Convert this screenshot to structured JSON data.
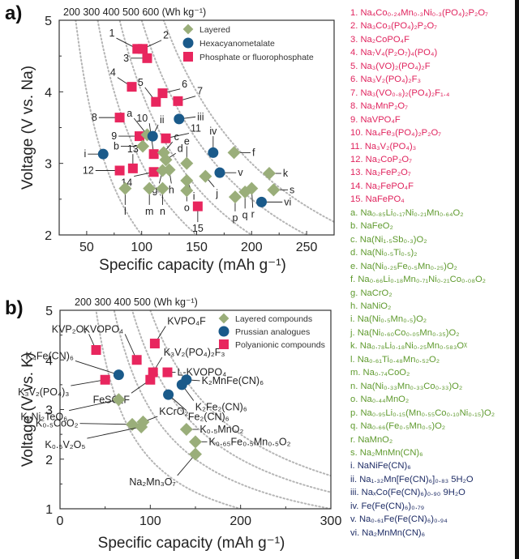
{
  "colors": {
    "layered": "#9aae7a",
    "hexacyano": "#1a5a8a",
    "phosphate": "#e8265e",
    "grid_dotted": "#b5b5b5",
    "list_pink": "#e0245e",
    "list_green": "#5f9a2e",
    "list_navy": "#1f2d66"
  },
  "chart_data": [
    {
      "type": "scatter",
      "panel": "a)",
      "xlabel": "Specific capacity  (mAh g⁻¹)",
      "ylabel": "Voltage  (V vs. Na)",
      "xlim": [
        25,
        275
      ],
      "ylim": [
        2,
        5
      ],
      "xticks": [
        50,
        100,
        150,
        200,
        250
      ],
      "yticks": [
        2,
        3,
        4,
        5
      ],
      "energy_top_label": "200 300 400 500 600 (Wh kg⁻¹)",
      "energy_curves_wh_per_kg": [
        200,
        300,
        400,
        500,
        600
      ],
      "legend": [
        {
          "label": "Layered",
          "marker": "diamond",
          "key": "layered"
        },
        {
          "label": "Hexacyanometalate",
          "marker": "circle",
          "key": "hexacyano"
        },
        {
          "label": "Phosphate or fluorophosphate",
          "marker": "square",
          "key": "phosphate"
        }
      ],
      "legend_position": "top-right",
      "series": [
        {
          "name": "Phosphate or fluorophosphate",
          "key": "phosphate",
          "points": [
            {
              "label": "1",
              "x": 96,
              "y": 4.6,
              "lx": 77,
              "ly": 4.75
            },
            {
              "label": "2",
              "x": 101,
              "y": 4.6,
              "lx": 118,
              "ly": 4.72
            },
            {
              "label": "3",
              "x": 105,
              "y": 4.47,
              "lx": 90,
              "ly": 4.47
            },
            {
              "label": "4",
              "x": 91,
              "y": 4.07,
              "lx": 78,
              "ly": 4.2
            },
            {
              "label": "5",
              "x": 113,
              "y": 3.86,
              "lx": 103,
              "ly": 4.06
            },
            {
              "label": "6",
              "x": 119,
              "y": 3.98,
              "lx": 135,
              "ly": 4.04
            },
            {
              "label": "7",
              "x": 133,
              "y": 3.87,
              "lx": 149,
              "ly": 3.94
            },
            {
              "label": "8",
              "x": 80,
              "y": 3.64,
              "lx": 61,
              "ly": 3.64
            },
            {
              "label": "9",
              "x": 98,
              "y": 3.38,
              "lx": 79,
              "ly": 3.38
            },
            {
              "label": "10",
              "x": 111,
              "y": 3.13,
              "lx": 107,
              "ly": 3.56
            },
            {
              "label": "11",
              "x": 122,
              "y": 3.35,
              "lx": 143,
              "ly": 3.42
            },
            {
              "label": "12",
              "x": 80,
              "y": 2.9,
              "lx": 58,
              "ly": 2.9
            },
            {
              "label": "13",
              "x": 92,
              "y": 2.93,
              "lx": 92,
              "ly": 3.13
            },
            {
              "label": "14",
              "x": 111,
              "y": 2.88,
              "lx": 93,
              "ly": 2.82
            },
            {
              "label": "15",
              "x": 151,
              "y": 2.4,
              "lx": 151,
              "ly": 2.18
            }
          ]
        },
        {
          "name": "Layered",
          "key": "layered",
          "points": [
            {
              "label": "a",
              "x": 105,
              "y": 3.4,
              "lx": 93,
              "ly": 3.63
            },
            {
              "label": "b",
              "x": 101,
              "y": 3.24,
              "lx": 81,
              "ly": 3.24
            },
            {
              "label": "c",
              "x": 120,
              "y": 3.15,
              "lx": 128,
              "ly": 3.3
            },
            {
              "label": "d",
              "x": 122,
              "y": 3.05,
              "lx": 131,
              "ly": 3.14
            },
            {
              "label": "e",
              "x": 141,
              "y": 3.0,
              "lx": 141,
              "ly": 3.24
            },
            {
              "label": "f",
              "x": 184,
              "y": 3.15,
              "lx": 199,
              "ly": 3.15
            },
            {
              "label": "g",
              "x": 119,
              "y": 2.9,
              "lx": 116,
              "ly": 2.72
            },
            {
              "label": "h",
              "x": 125,
              "y": 2.91,
              "lx": 127,
              "ly": 2.72
            },
            {
              "label": "i",
              "x": 141,
              "y": 2.76,
              "lx": 145,
              "ly": 2.63
            },
            {
              "label": "j",
              "x": 158,
              "y": 2.82,
              "lx": 166,
              "ly": 2.67
            },
            {
              "label": "k",
              "x": 216,
              "y": 2.86,
              "lx": 227,
              "ly": 2.86
            },
            {
              "label": "l",
              "x": 85,
              "y": 2.65,
              "lx": 85,
              "ly": 2.42
            },
            {
              "label": "m",
              "x": 107,
              "y": 2.65,
              "lx": 107,
              "ly": 2.42
            },
            {
              "label": "n",
              "x": 119,
              "y": 2.65,
              "lx": 119,
              "ly": 2.42
            },
            {
              "label": "o",
              "x": 141,
              "y": 2.62,
              "lx": 141,
              "ly": 2.47
            },
            {
              "label": "p",
              "x": 185,
              "y": 2.53,
              "lx": 185,
              "ly": 2.33
            },
            {
              "label": "q",
              "x": 194,
              "y": 2.6,
              "lx": 194,
              "ly": 2.37
            },
            {
              "label": "r",
              "x": 200,
              "y": 2.65,
              "lx": 201,
              "ly": 2.38
            },
            {
              "label": "s",
              "x": 220,
              "y": 2.63,
              "lx": 233,
              "ly": 2.63
            }
          ]
        },
        {
          "name": "Hexacyanometalate",
          "key": "hexacyano",
          "points": [
            {
              "label": "i",
              "x": 65,
              "y": 3.13,
              "lx": 51,
              "ly": 3.13
            },
            {
              "label": "ii",
              "x": 110,
              "y": 3.38,
              "lx": 115,
              "ly": 3.54
            },
            {
              "label": "iii",
              "x": 134,
              "y": 3.62,
              "lx": 149,
              "ly": 3.65
            },
            {
              "label": "iv",
              "x": 165,
              "y": 3.15,
              "lx": 165,
              "ly": 3.38
            },
            {
              "label": "v",
              "x": 171,
              "y": 2.87,
              "lx": 186,
              "ly": 2.87
            },
            {
              "label": "vi",
              "x": 209,
              "y": 2.46,
              "lx": 228,
              "ly": 2.46
            }
          ]
        }
      ]
    },
    {
      "type": "scatter",
      "panel": "b)",
      "xlabel": "Specific capacity (mAh g⁻¹)",
      "ylabel": "Voltage (V vs. K)",
      "xlim": [
        0,
        300
      ],
      "ylim": [
        1,
        5
      ],
      "xticks": [
        0,
        100,
        200,
        300
      ],
      "yticks": [
        1,
        2,
        3,
        4,
        5
      ],
      "energy_top_label": "200 300 400 500 (Wh kg⁻¹)",
      "energy_curves_wh_per_kg": [
        200,
        300,
        400,
        500
      ],
      "legend": [
        {
          "label": "Layered compounds",
          "marker": "diamond",
          "key": "layered"
        },
        {
          "label": "Prussian analogues",
          "marker": "circle",
          "key": "hexacyano"
        },
        {
          "label": "Polyanionic compounds",
          "marker": "square",
          "key": "phosphate"
        }
      ],
      "legend_position": "top-right",
      "series": [
        {
          "name": "Polyanionic compounds",
          "key": "phosphate",
          "points": [
            {
              "label": "KVP₂O₇",
              "x": 40,
              "y": 4.2,
              "lx": 32,
              "ly": 4.52
            },
            {
              "label": "KVOPO₄",
              "x": 85,
              "y": 4.0,
              "lx": 72,
              "ly": 4.52
            },
            {
              "label": "KVPO₄F",
              "x": 105,
              "y": 4.33,
              "lx": 117,
              "ly": 4.68
            },
            {
              "label": "K₃V₂(PO₄)₂F₃",
              "x": 103,
              "y": 3.75,
              "lx": 113,
              "ly": 4.05
            },
            {
              "label": "L-KVOPO₄",
              "x": 119,
              "y": 3.75,
              "lx": 128,
              "ly": 3.75
            },
            {
              "label": "FeSO₄F",
              "x": 100,
              "y": 3.6,
              "lx": 79,
              "ly": 3.33
            },
            {
              "label": "K₃V₂(PO₄)₃",
              "x": 50,
              "y": 3.6,
              "lx": 12,
              "ly": 3.48
            }
          ]
        },
        {
          "name": "Prussian analogues",
          "key": "hexacyano",
          "points": [
            {
              "label": "K₄Fe(CN)₆",
              "x": 65,
              "y": 3.7,
              "lx": 17,
              "ly": 3.98
            },
            {
              "label": "K₂MnFe(CN)₆",
              "x": 140,
              "y": 3.6,
              "lx": 155,
              "ly": 3.58
            },
            {
              "label": "K₂Fe₂(CN)₆",
              "x": 135,
              "y": 3.5,
              "lx": 148,
              "ly": 3.18
            },
            {
              "label": "Fe₂(CN)₆",
              "x": 120,
              "y": 3.3,
              "lx": 140,
              "ly": 2.98
            }
          ]
        },
        {
          "name": "Layered compounds",
          "key": "layered",
          "points": [
            {
              "label": "K₂Ni₂TeO₆",
              "x": 65,
              "y": 3.2,
              "lx": 10,
              "ly": 2.98
            },
            {
              "label": "KCrO₂",
              "x": 92,
              "y": 2.75,
              "lx": 108,
              "ly": 2.86
            },
            {
              "label": "K₀.₅CoO₂",
              "x": 80,
              "y": 2.7,
              "lx": 22,
              "ly": 2.72
            },
            {
              "label": "K₀.₅V₂O₅",
              "x": 90,
              "y": 2.65,
              "lx": 30,
              "ly": 2.42
            },
            {
              "label": "K₀.₅MnO₂",
              "x": 140,
              "y": 2.6,
              "lx": 153,
              "ly": 2.6
            },
            {
              "label": "K₀.₆₅Fe₀.₅Mn₀.₅O₂",
              "x": 150,
              "y": 2.35,
              "lx": 163,
              "ly": 2.35
            },
            {
              "label": "Na₂Mn₃O₇",
              "x": 150,
              "y": 2.1,
              "lx": 130,
              "ly": 1.67
            }
          ]
        }
      ]
    }
  ],
  "formula_list": [
    {
      "text": "1. Na₄Co₀.₂₄Mn₀.₃Ni₀.₃(PO₄)₂P₂O₇",
      "color": "pink"
    },
    {
      "text": "2. Na₃Co₃(PO₄)₂P₂O₇",
      "color": "pink"
    },
    {
      "text": "3. Na₂CoPO₄F",
      "color": "pink"
    },
    {
      "text": "4. Na₇V₄(P₂O₇)₄(PO₄)",
      "color": "pink"
    },
    {
      "text": "5. Na₃(VO)₂(PO₄)₂F",
      "color": "pink"
    },
    {
      "text": "6. Na₃V₂(PO₄)₂F₃",
      "color": "pink"
    },
    {
      "text": "7. Na₃(VO₀.₈)₂(PO₄)₂F₁.₄",
      "color": "pink"
    },
    {
      "text": "8. Na₂MnP₂O₇",
      "color": "pink"
    },
    {
      "text": "9. NaVPO₄F",
      "color": "pink"
    },
    {
      "text": "10. Na₄Fe₃(PO₄)₂P₂O₇",
      "color": "pink"
    },
    {
      "text": "11. Na₃V₂(PO₄)₃",
      "color": "pink"
    },
    {
      "text": "12. Na₂CoP₂O₇",
      "color": "pink"
    },
    {
      "text": "13. Na₂FeP₂O₇",
      "color": "pink"
    },
    {
      "text": "14. Na₂FePO₄F",
      "color": "pink"
    },
    {
      "text": "15. NaFePO₄",
      "color": "pink"
    },
    {
      "text": "a. Na₀.₈₅Li₀.₁₇Ni₀.₂₁Mn₀.₆₄O₂",
      "color": "green"
    },
    {
      "text": "b. NaFeO₂",
      "color": "green"
    },
    {
      "text": "c. Na(Ni₁.₅Sb₀.₃)O₂",
      "color": "green"
    },
    {
      "text": "d. Na(Ni₀.₅Ti₀.₅)₂",
      "color": "green"
    },
    {
      "text": "e. Na(Ni₀.₂₅Fe₀.₅Mn₀.₂₅)O₂",
      "color": "green"
    },
    {
      "text": "f.  Na₀.₆₆Li₀.₁₈Mn₀.₇₁Ni₀.₂₁Co₀.₀₈O₂",
      "color": "green"
    },
    {
      "text": "g. NaCrO₂",
      "color": "green"
    },
    {
      "text": "h. NaNiO₂",
      "color": "green"
    },
    {
      "text": "i. Na(Ni₀.₅Mn₀.₅)O₂",
      "color": "green"
    },
    {
      "text": "j. Na(Ni₀.₆₀Co₀.₀₅Mn₀.₃₅)O₂",
      "color": "green"
    },
    {
      "text": "k. Na₀.₇₈Li₀.₁₈Ni₀.₂₅Mn₀.₅₈₃Oᵡ",
      "color": "green"
    },
    {
      "text": "l. Na₀.₆₁Ti₀.₄₈Mn₀.₅₂O₂",
      "color": "green"
    },
    {
      "text": "m. Na₀.₇₄CoO₂",
      "color": "green"
    },
    {
      "text": "n. Na(Ni₀.₃₃Mn₀.₃₃Co₀.₃₃)O₂",
      "color": "green"
    },
    {
      "text": "o. Na₀.₄₄MnO₂",
      "color": "green"
    },
    {
      "text": "p. Na₀.₉₅Li₀.₁₅(Mn₀.₅₅Co₀.₁₀Ni₀.₁₅)O₂",
      "color": "green"
    },
    {
      "text": "q. Na₀.₆₆(Fe₀.₅Mn₀.₅)O₂",
      "color": "green"
    },
    {
      "text": "r.  NaMnO₂",
      "color": "green"
    },
    {
      "text": "s. Na₂MnMn(CN)₆",
      "color": "green"
    },
    {
      "text": "i. NaNiFe(CN)₆",
      "color": "navy"
    },
    {
      "text": "ii. Na₁.₃₂Mn[Fe(CN)₆]₀.₈₃ 5H₂O",
      "color": "navy"
    },
    {
      "text": "iii. NaₓCo(Fe(CN)₆)₀.₉₀ 9H₂O",
      "color": "navy"
    },
    {
      "text": "iv. Fe(Fe(CN)₆)₀.₇₉",
      "color": "navy"
    },
    {
      "text": "v. Na₀.₆₁Fe(Fe(CN)₆)₀.₉₄",
      "color": "navy"
    },
    {
      "text": "vi. Na₂MnMn(CN)₆",
      "color": "navy"
    }
  ]
}
